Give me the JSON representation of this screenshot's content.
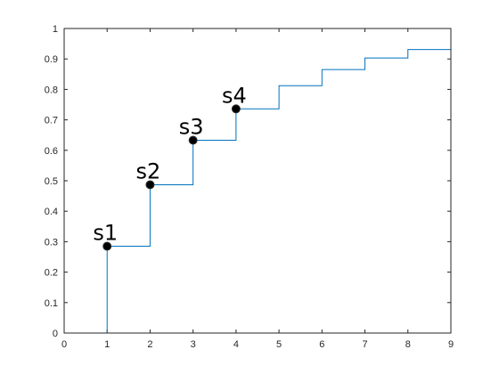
{
  "chart_data": {
    "type": "line",
    "title": "",
    "xlabel": "",
    "ylabel": "",
    "xlim": [
      0,
      9
    ],
    "ylim": [
      0,
      1
    ],
    "x_ticks": [
      "0",
      "1",
      "2",
      "3",
      "4",
      "5",
      "6",
      "7",
      "8",
      "9"
    ],
    "y_ticks": [
      "0",
      "0.1",
      "0.2",
      "0.3",
      "0.4",
      "0.5",
      "0.6",
      "0.7",
      "0.8",
      "0.9",
      "1"
    ],
    "grid": false,
    "legend": "none",
    "series": [
      {
        "style": "stairs",
        "color": "#0072BD",
        "x": [
          0,
          1,
          2,
          3,
          4,
          5,
          6,
          7,
          8,
          9
        ],
        "y": [
          0,
          0.285,
          0.487,
          0.633,
          0.736,
          0.812,
          0.865,
          0.903,
          0.931,
          0.931
        ]
      }
    ],
    "markers": [
      {
        "label": "s1",
        "x": 1,
        "y": 0.285
      },
      {
        "label": "s2",
        "x": 2,
        "y": 0.487
      },
      {
        "label": "s3",
        "x": 3,
        "y": 0.633
      },
      {
        "label": "s4",
        "x": 4,
        "y": 0.736
      }
    ],
    "marker_color": "#000000"
  }
}
